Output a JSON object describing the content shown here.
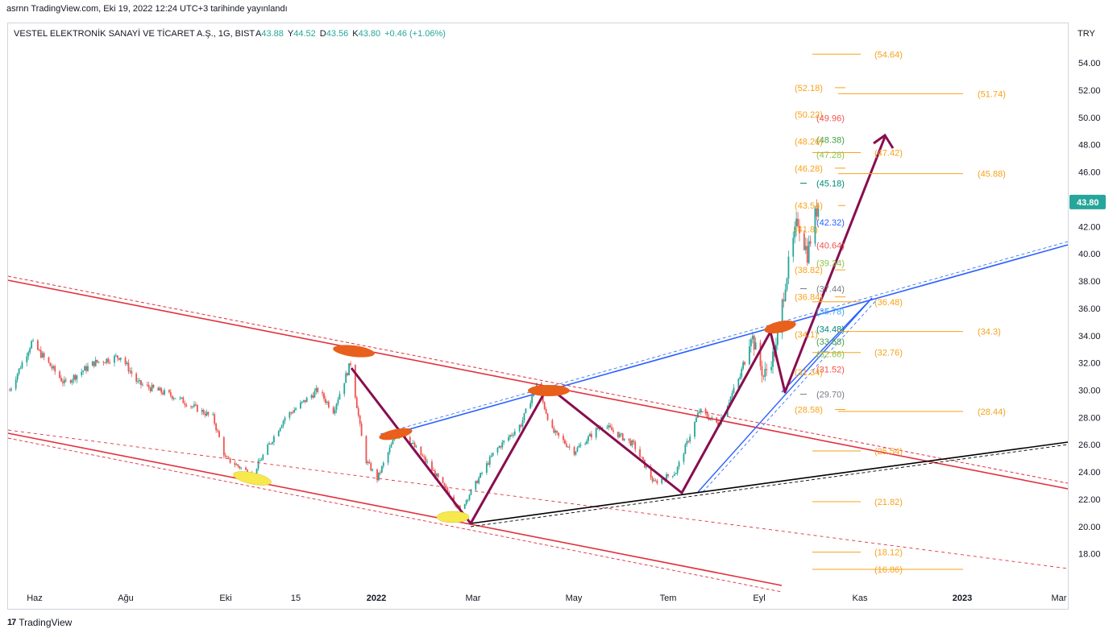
{
  "header": {
    "published": "asrnn TradingView.com, Eki 19, 2022 12:24 UTC+3 tarihinde yayınlandı"
  },
  "legend": {
    "symbol": "VESTEL ELEKTRONİK SANAYİ VE TİCARET A.Ş., 1G, BIST",
    "o_label": "A",
    "o": "43.88",
    "h_label": "Y",
    "h": "44.52",
    "l_label": "D",
    "l": "43.56",
    "c_label": "K",
    "c": "43.80",
    "change": "+0.46 (+1.06%)"
  },
  "footer": {
    "brand": "TradingView",
    "logo": "17"
  },
  "colors": {
    "up": "#26a69a",
    "down": "#ef5350",
    "channel": "#e2303d",
    "blue": "#2962ff",
    "zigzag": "#880e4f",
    "fib": "#f7a21b",
    "black": "#000000",
    "orange_mark": "#e8601c",
    "yellow_mark": "#f7e84e",
    "price_tag": "#26a69a"
  },
  "chart_data": {
    "type": "candlestick",
    "currency": "TRY",
    "last_price": "43.80",
    "ylim": [
      15.5,
      56.9
    ],
    "y_ticks": [
      "54.00",
      "52.00",
      "50.00",
      "48.00",
      "46.00",
      "44.00",
      "42.00",
      "40.00",
      "38.00",
      "36.00",
      "34.00",
      "32.00",
      "30.00",
      "28.00",
      "26.00",
      "24.00",
      "22.00",
      "20.00",
      "18.00"
    ],
    "x_ticks": [
      "Haz",
      "Ağu",
      "Eki",
      "15",
      "2022",
      "Mar",
      "May",
      "Tem",
      "Eyl",
      "Kas",
      "2023",
      "Mar"
    ],
    "bold_x_ticks": [
      "2022",
      "2023"
    ],
    "series_keypoints": [
      {
        "date": "2021-05-20",
        "price": 30.0
      },
      {
        "date": "2021-06-03",
        "price": 33.5
      },
      {
        "date": "2021-06-24",
        "price": 30.5
      },
      {
        "date": "2021-07-13",
        "price": 32.0
      },
      {
        "date": "2021-07-30",
        "price": 32.5
      },
      {
        "date": "2021-08-10",
        "price": 30.5
      },
      {
        "date": "2021-09-03",
        "price": 29.5
      },
      {
        "date": "2021-09-27",
        "price": 28.0
      },
      {
        "date": "2021-10-05",
        "price": 25.0
      },
      {
        "date": "2021-10-22",
        "price": 23.8
      },
      {
        "date": "2021-11-12",
        "price": 28.0
      },
      {
        "date": "2021-12-03",
        "price": 30.0
      },
      {
        "date": "2021-12-13",
        "price": 28.5
      },
      {
        "date": "2021-12-24",
        "price": 32.0
      },
      {
        "date": "2022-01-02",
        "price": 25.0
      },
      {
        "date": "2022-01-10",
        "price": 23.5
      },
      {
        "date": "2022-01-24",
        "price": 27.3
      },
      {
        "date": "2022-02-12",
        "price": 24.5
      },
      {
        "date": "2022-03-04",
        "price": 21.2
      },
      {
        "date": "2022-03-26",
        "price": 25.5
      },
      {
        "date": "2022-04-12",
        "price": 27.5
      },
      {
        "date": "2022-04-22",
        "price": 30.5
      },
      {
        "date": "2022-05-02",
        "price": 27.0
      },
      {
        "date": "2022-05-16",
        "price": 25.5
      },
      {
        "date": "2022-06-03",
        "price": 27.5
      },
      {
        "date": "2022-06-23",
        "price": 26.0
      },
      {
        "date": "2022-07-06",
        "price": 23.2
      },
      {
        "date": "2022-07-20",
        "price": 24.0
      },
      {
        "date": "2022-08-04",
        "price": 28.5
      },
      {
        "date": "2022-08-16",
        "price": 27.5
      },
      {
        "date": "2022-08-30",
        "price": 31.0
      },
      {
        "date": "2022-09-06",
        "price": 34.2
      },
      {
        "date": "2022-09-14",
        "price": 31.0
      },
      {
        "date": "2022-09-22",
        "price": 33.0
      },
      {
        "date": "2022-09-28",
        "price": 38.0
      },
      {
        "date": "2022-10-06",
        "price": 42.5
      },
      {
        "date": "2022-10-12",
        "price": 40.0
      },
      {
        "date": "2022-10-19",
        "price": 43.8
      }
    ],
    "fib_labels": [
      {
        "text": "(54.64)",
        "price": 54.64,
        "color": "#f7a21b"
      },
      {
        "text": "(52.18)",
        "price": 52.18,
        "color": "#f7a21b"
      },
      {
        "text": "(51.74)",
        "price": 51.74,
        "color": "#f7a21b"
      },
      {
        "text": "(50.22)",
        "price": 50.22,
        "color": "#f7a21b"
      },
      {
        "text": "(49.96)",
        "price": 49.96,
        "color": "#ef5350"
      },
      {
        "text": "(48.38)",
        "price": 48.38,
        "color": "#43a047"
      },
      {
        "text": "(48.26)",
        "price": 48.26,
        "color": "#f7a21b"
      },
      {
        "text": "(47.42)",
        "price": 47.42,
        "color": "#f7a21b"
      },
      {
        "text": "(47.28)",
        "price": 47.28,
        "color": "#8bc34a"
      },
      {
        "text": "(46.28)",
        "price": 46.28,
        "color": "#f7a21b"
      },
      {
        "text": "(45.88)",
        "price": 45.88,
        "color": "#f7a21b"
      },
      {
        "text": "(45.18)",
        "price": 45.18,
        "color": "#00897b"
      },
      {
        "text": "(43.54)",
        "price": 43.54,
        "color": "#f7a21b"
      },
      {
        "text": "(42.32)",
        "price": 42.32,
        "color": "#2962ff"
      },
      {
        "text": "(41.8)",
        "price": 41.8,
        "color": "#f7a21b"
      },
      {
        "text": "(40.64)",
        "price": 40.64,
        "color": "#ef5350"
      },
      {
        "text": "(39.34)",
        "price": 39.34,
        "color": "#8bc34a"
      },
      {
        "text": "(38.82)",
        "price": 38.82,
        "color": "#f7a21b"
      },
      {
        "text": "(37.44)",
        "price": 37.44,
        "color": "#787b86"
      },
      {
        "text": "(36.84)",
        "price": 36.84,
        "color": "#f7a21b"
      },
      {
        "text": "(36.48)",
        "price": 36.48,
        "color": "#f7a21b"
      },
      {
        "text": "(35.78)",
        "price": 35.78,
        "color": "#42a5f5"
      },
      {
        "text": "(34.48)",
        "price": 34.48,
        "color": "#00897b"
      },
      {
        "text": "(34.3)",
        "price": 34.3,
        "color": "#f7a21b"
      },
      {
        "text": "(34.1)",
        "price": 34.1,
        "color": "#f7a21b"
      },
      {
        "text": "(33.58)",
        "price": 33.58,
        "color": "#43a047"
      },
      {
        "text": "(32.76)",
        "price": 32.76,
        "color": "#f7a21b"
      },
      {
        "text": "(32.66)",
        "price": 32.66,
        "color": "#8bc34a"
      },
      {
        "text": "(31.52)",
        "price": 31.52,
        "color": "#ef5350"
      },
      {
        "text": "(31.34)",
        "price": 31.34,
        "color": "#f7a21b"
      },
      {
        "text": "(29.70)",
        "price": 29.7,
        "color": "#787b86"
      },
      {
        "text": "(28.58)",
        "price": 28.58,
        "color": "#f7a21b"
      },
      {
        "text": "(28.44)",
        "price": 28.44,
        "color": "#f7a21b"
      },
      {
        "text": "(25.54)",
        "price": 25.54,
        "color": "#f7a21b"
      },
      {
        "text": "(21.82)",
        "price": 21.82,
        "color": "#f7a21b"
      },
      {
        "text": "(18.12)",
        "price": 18.12,
        "color": "#f7a21b"
      },
      {
        "text": "(16.86)",
        "price": 16.86,
        "color": "#f7a21b"
      }
    ]
  }
}
